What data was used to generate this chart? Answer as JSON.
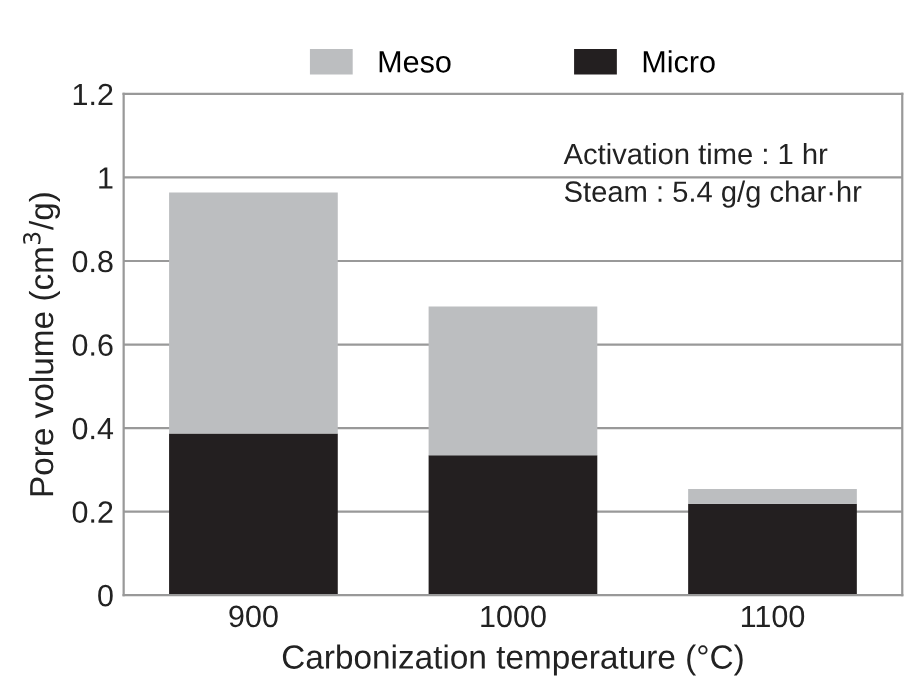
{
  "chart_data": {
    "type": "bar",
    "stacked": true,
    "xlabel": "Carbonization temperature (°C)",
    "ylabel": "Pore volume (cm$^{3}$/g)",
    "categories": [
      "900",
      "1000",
      "1100"
    ],
    "series": [
      {
        "name": "Micro",
        "color": "#231f20",
        "values": [
          0.387,
          0.335,
          0.219
        ]
      },
      {
        "name": "Meso",
        "color": "#bcbec0",
        "values": [
          0.577,
          0.356,
          0.035
        ]
      }
    ],
    "ylim": [
      0,
      1.2
    ],
    "yticks": [
      0,
      0.2,
      0.4,
      0.6,
      0.8,
      1,
      1.2
    ],
    "grid": "y",
    "legend": "top",
    "annotations": [
      "Activation time : 1 hr",
      "Steam : 5.4 g/g char·hr"
    ]
  }
}
